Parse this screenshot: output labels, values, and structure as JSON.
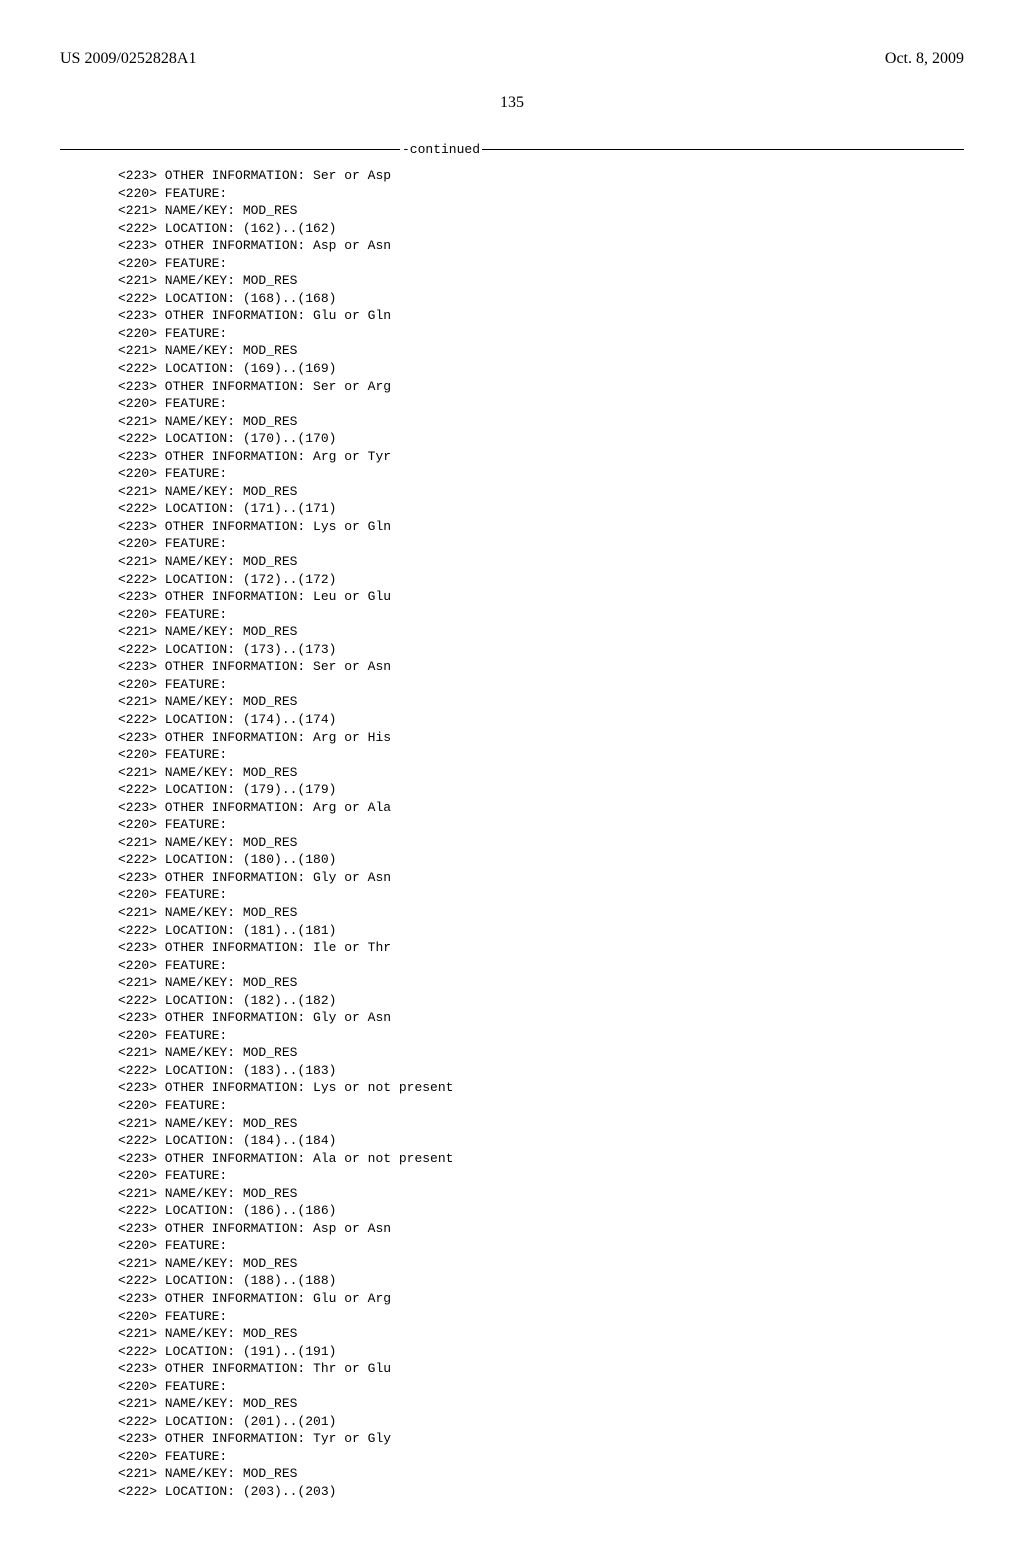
{
  "header": {
    "pub_number": "US 2009/0252828A1",
    "pub_date": "Oct. 8, 2009"
  },
  "page_number": "135",
  "continued_label": "-continued",
  "features": [
    {
      "tag": "223",
      "text": "OTHER INFORMATION: Ser or Asp"
    },
    {
      "tag": "220",
      "text": "FEATURE:"
    },
    {
      "tag": "221",
      "text": "NAME/KEY: MOD_RES"
    },
    {
      "tag": "222",
      "text": "LOCATION: (162)..(162)"
    },
    {
      "tag": "223",
      "text": "OTHER INFORMATION: Asp or Asn"
    },
    {
      "tag": "220",
      "text": "FEATURE:"
    },
    {
      "tag": "221",
      "text": "NAME/KEY: MOD_RES"
    },
    {
      "tag": "222",
      "text": "LOCATION: (168)..(168)"
    },
    {
      "tag": "223",
      "text": "OTHER INFORMATION: Glu or Gln"
    },
    {
      "tag": "220",
      "text": "FEATURE:"
    },
    {
      "tag": "221",
      "text": "NAME/KEY: MOD_RES"
    },
    {
      "tag": "222",
      "text": "LOCATION: (169)..(169)"
    },
    {
      "tag": "223",
      "text": "OTHER INFORMATION: Ser or Arg"
    },
    {
      "tag": "220",
      "text": "FEATURE:"
    },
    {
      "tag": "221",
      "text": "NAME/KEY: MOD_RES"
    },
    {
      "tag": "222",
      "text": "LOCATION: (170)..(170)"
    },
    {
      "tag": "223",
      "text": "OTHER INFORMATION: Arg or Tyr"
    },
    {
      "tag": "220",
      "text": "FEATURE:"
    },
    {
      "tag": "221",
      "text": "NAME/KEY: MOD_RES"
    },
    {
      "tag": "222",
      "text": "LOCATION: (171)..(171)"
    },
    {
      "tag": "223",
      "text": "OTHER INFORMATION: Lys or Gln"
    },
    {
      "tag": "220",
      "text": "FEATURE:"
    },
    {
      "tag": "221",
      "text": "NAME/KEY: MOD_RES"
    },
    {
      "tag": "222",
      "text": "LOCATION: (172)..(172)"
    },
    {
      "tag": "223",
      "text": "OTHER INFORMATION: Leu or Glu"
    },
    {
      "tag": "220",
      "text": "FEATURE:"
    },
    {
      "tag": "221",
      "text": "NAME/KEY: MOD_RES"
    },
    {
      "tag": "222",
      "text": "LOCATION: (173)..(173)"
    },
    {
      "tag": "223",
      "text": "OTHER INFORMATION: Ser or Asn"
    },
    {
      "tag": "220",
      "text": "FEATURE:"
    },
    {
      "tag": "221",
      "text": "NAME/KEY: MOD_RES"
    },
    {
      "tag": "222",
      "text": "LOCATION: (174)..(174)"
    },
    {
      "tag": "223",
      "text": "OTHER INFORMATION: Arg or His"
    },
    {
      "tag": "220",
      "text": "FEATURE:"
    },
    {
      "tag": "221",
      "text": "NAME/KEY: MOD_RES"
    },
    {
      "tag": "222",
      "text": "LOCATION: (179)..(179)"
    },
    {
      "tag": "223",
      "text": "OTHER INFORMATION: Arg or Ala"
    },
    {
      "tag": "220",
      "text": "FEATURE:"
    },
    {
      "tag": "221",
      "text": "NAME/KEY: MOD_RES"
    },
    {
      "tag": "222",
      "text": "LOCATION: (180)..(180)"
    },
    {
      "tag": "223",
      "text": "OTHER INFORMATION: Gly or Asn"
    },
    {
      "tag": "220",
      "text": "FEATURE:"
    },
    {
      "tag": "221",
      "text": "NAME/KEY: MOD_RES"
    },
    {
      "tag": "222",
      "text": "LOCATION: (181)..(181)"
    },
    {
      "tag": "223",
      "text": "OTHER INFORMATION: Ile or Thr"
    },
    {
      "tag": "220",
      "text": "FEATURE:"
    },
    {
      "tag": "221",
      "text": "NAME/KEY: MOD_RES"
    },
    {
      "tag": "222",
      "text": "LOCATION: (182)..(182)"
    },
    {
      "tag": "223",
      "text": "OTHER INFORMATION: Gly or Asn"
    },
    {
      "tag": "220",
      "text": "FEATURE:"
    },
    {
      "tag": "221",
      "text": "NAME/KEY: MOD_RES"
    },
    {
      "tag": "222",
      "text": "LOCATION: (183)..(183)"
    },
    {
      "tag": "223",
      "text": "OTHER INFORMATION: Lys or not present"
    },
    {
      "tag": "220",
      "text": "FEATURE:"
    },
    {
      "tag": "221",
      "text": "NAME/KEY: MOD_RES"
    },
    {
      "tag": "222",
      "text": "LOCATION: (184)..(184)"
    },
    {
      "tag": "223",
      "text": "OTHER INFORMATION: Ala or not present"
    },
    {
      "tag": "220",
      "text": "FEATURE:"
    },
    {
      "tag": "221",
      "text": "NAME/KEY: MOD_RES"
    },
    {
      "tag": "222",
      "text": "LOCATION: (186)..(186)"
    },
    {
      "tag": "223",
      "text": "OTHER INFORMATION: Asp or Asn"
    },
    {
      "tag": "220",
      "text": "FEATURE:"
    },
    {
      "tag": "221",
      "text": "NAME/KEY: MOD_RES"
    },
    {
      "tag": "222",
      "text": "LOCATION: (188)..(188)"
    },
    {
      "tag": "223",
      "text": "OTHER INFORMATION: Glu or Arg"
    },
    {
      "tag": "220",
      "text": "FEATURE:"
    },
    {
      "tag": "221",
      "text": "NAME/KEY: MOD_RES"
    },
    {
      "tag": "222",
      "text": "LOCATION: (191)..(191)"
    },
    {
      "tag": "223",
      "text": "OTHER INFORMATION: Thr or Glu"
    },
    {
      "tag": "220",
      "text": "FEATURE:"
    },
    {
      "tag": "221",
      "text": "NAME/KEY: MOD_RES"
    },
    {
      "tag": "222",
      "text": "LOCATION: (201)..(201)"
    },
    {
      "tag": "223",
      "text": "OTHER INFORMATION: Tyr or Gly"
    },
    {
      "tag": "220",
      "text": "FEATURE:"
    },
    {
      "tag": "221",
      "text": "NAME/KEY: MOD_RES"
    },
    {
      "tag": "222",
      "text": "LOCATION: (203)..(203)"
    }
  ]
}
